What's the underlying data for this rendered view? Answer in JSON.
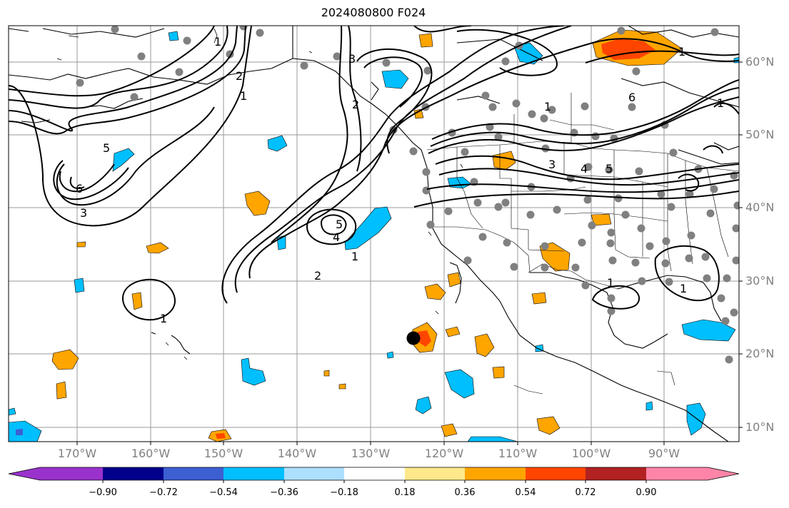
{
  "title": "2024080800 F024",
  "map": {
    "lat_labels": [
      "60°N",
      "50°N",
      "40°N",
      "30°N",
      "20°N",
      "10°N"
    ],
    "lon_labels": [
      "170°W",
      "160°W",
      "150°W",
      "140°W",
      "130°W",
      "120°W",
      "110°W",
      "100°W",
      "90°W"
    ],
    "contour_labels": [
      "1",
      "2",
      "1",
      "6",
      "5",
      "3",
      "5",
      "2",
      "1",
      "3",
      "4",
      "2",
      "1",
      "1",
      "1",
      "1",
      "3",
      "4",
      "5",
      "6",
      "1",
      "1"
    ]
  },
  "colorbar": {
    "ticks": [
      "−0.90",
      "−0.72",
      "−0.54",
      "−0.36",
      "−0.18",
      "0.18",
      "0.36",
      "0.54",
      "0.72",
      "0.90"
    ],
    "colors": [
      "#9932CC",
      "#00008B",
      "#3C5FD2",
      "#00BFFF",
      "#ADDFFF",
      "#FFFFFF",
      "#FFE88A",
      "#FFA500",
      "#FF4500",
      "#B22222",
      "#FF85A8"
    ]
  }
}
